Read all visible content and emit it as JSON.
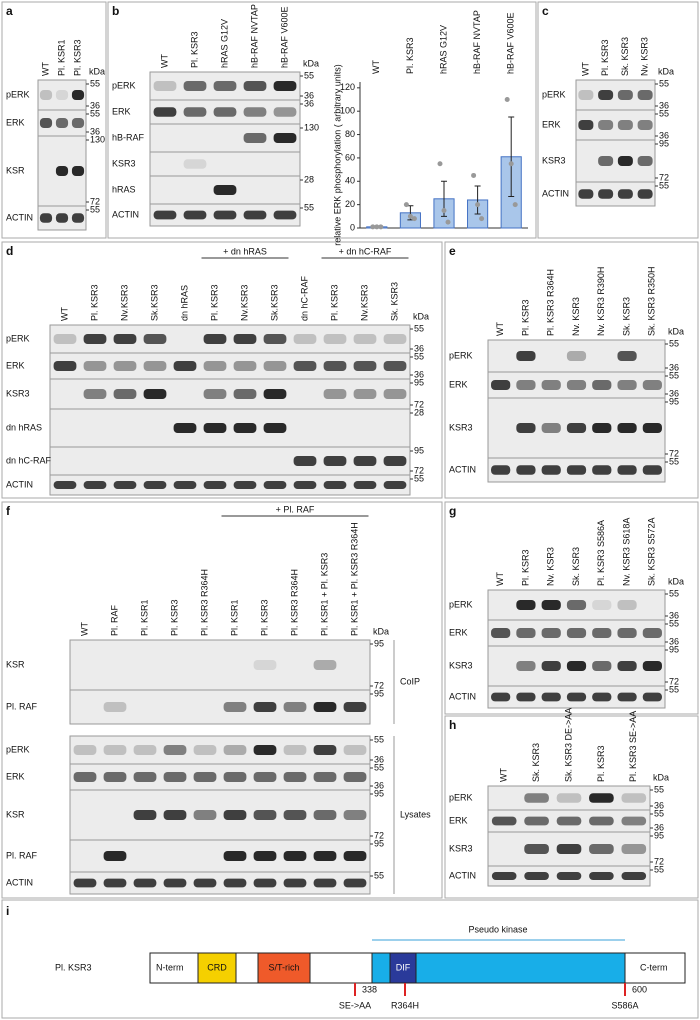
{
  "panels": [
    {
      "label": "a",
      "kda": "kDa",
      "lanes": [
        "WT",
        "Pl. KSR1",
        "Pl. KSR3"
      ],
      "sections": [
        {
          "rows": [
            {
              "name": "pERK",
              "markers": [
                55,
                36
              ]
            },
            {
              "name": "ERK",
              "markers": [
                55,
                36
              ]
            },
            {
              "name": "KSR",
              "markers": [
                130,
                72
              ]
            },
            {
              "name": "ACTIN",
              "markers": [
                55
              ]
            }
          ]
        }
      ]
    },
    {
      "label": "b",
      "kda": "kDa",
      "lanes": [
        "WT",
        "Pl. KSR3",
        "hRAS G12V",
        "hB-RAF NVTAP",
        "hB-RAF V600E"
      ],
      "sections": [
        {
          "rows": [
            {
              "name": "pERK",
              "markers": [
                55,
                36
              ]
            },
            {
              "name": "ERK",
              "markers": [
                36
              ]
            },
            {
              "name": "hB-RAF",
              "markers": [
                130
              ]
            },
            {
              "name": "KSR3",
              "markers": []
            },
            {
              "name": "hRAS",
              "markers": [
                28
              ]
            },
            {
              "name": "ACTIN",
              "markers": [
                55
              ]
            }
          ]
        }
      ]
    },
    {
      "label": "c",
      "kda": "kDa",
      "lanes": [
        "WT",
        "Pl. KSR3",
        "Sk. KSR3",
        "Nv. KSR3"
      ],
      "sections": [
        {
          "rows": [
            {
              "name": "pERK",
              "markers": [
                55,
                36
              ]
            },
            {
              "name": "ERK",
              "markers": [
                55,
                36
              ]
            },
            {
              "name": "KSR3",
              "markers": [
                95,
                72
              ]
            },
            {
              "name": "ACTIN",
              "markers": [
                55
              ]
            }
          ]
        }
      ]
    },
    {
      "label": "d",
      "kda": "kDa",
      "groups": [
        "+ dn hRAS",
        "+ dn hC-RAF"
      ],
      "lanes": [
        "WT",
        "Pl. KSR3",
        "Nv.KSR3",
        "Sk.KSR3",
        "dn hRAS",
        "Pl. KSR3",
        "Nv.KSR3",
        "Sk.KSR3",
        "dn hC-RAF",
        "Pl. KSR3",
        "Nv.KSR3",
        "Sk. KSR3"
      ],
      "sections": [
        {
          "rows": [
            {
              "name": "pERK",
              "markers": [
                55,
                36
              ]
            },
            {
              "name": "ERK",
              "markers": [
                55,
                36
              ]
            },
            {
              "name": "KSR3",
              "markers": [
                95,
                72
              ]
            },
            {
              "name": "dn hRAS",
              "markers": [
                28
              ]
            },
            {
              "name": "dn hC-RAF",
              "markers": [
                95,
                72
              ]
            },
            {
              "name": "ACTIN",
              "markers": [
                55
              ]
            }
          ]
        }
      ]
    },
    {
      "label": "e",
      "kda": "kDa",
      "lanes": [
        "WT",
        "Pl. KSR3",
        "Pl. KSR3  R364H",
        "Nv. KSR3",
        "Nv. KSR3 R390H",
        "Sk. KSR3",
        "Sk. KSR3 R350H"
      ],
      "sections": [
        {
          "rows": [
            {
              "name": "pERK",
              "markers": [
                55,
                36
              ]
            },
            {
              "name": "ERK",
              "markers": [
                55,
                36
              ]
            },
            {
              "name": "KSR3",
              "markers": [
                95,
                72
              ]
            },
            {
              "name": "ACTIN",
              "markers": [
                55
              ]
            }
          ]
        }
      ]
    },
    {
      "label": "f",
      "kda": "kDa",
      "groups": [
        "+ Pl. RAF"
      ],
      "lanes": [
        "WT",
        "Pl. RAF",
        "Pl. KSR1",
        "Pl. KSR3",
        "Pl. KSR3  R364H",
        "Pl. KSR1",
        "Pl. KSR3",
        "Pl. KSR3  R364H",
        "Pl. KSR1 + Pl. KSR3",
        "Pl. KSR1 + Pl. KSR3 R364H"
      ],
      "sections": [
        {
          "label": "CoIP",
          "rows": [
            {
              "name": "KSR",
              "markers": [
                95,
                72
              ]
            },
            {
              "name": "Pl. RAF",
              "markers": [
                95
              ]
            }
          ]
        },
        {
          "label": "Lysates",
          "rows": [
            {
              "name": "pERK",
              "markers": [
                55,
                36
              ]
            },
            {
              "name": "ERK",
              "markers": [
                55,
                36
              ]
            },
            {
              "name": "KSR",
              "markers": [
                95,
                72
              ]
            },
            {
              "name": "Pl. RAF",
              "markers": [
                95
              ]
            },
            {
              "name": "ACTIN",
              "markers": [
                55
              ]
            }
          ]
        }
      ]
    },
    {
      "label": "g",
      "kda": "kDa",
      "lanes": [
        "WT",
        "Pl. KSR3",
        "Nv. KSR3",
        "Sk. KSR3",
        "Pl. KSR3 S586A",
        "Nv. KSR3 S618A",
        "Sk. KSR3 S572A"
      ],
      "sections": [
        {
          "rows": [
            {
              "name": "pERK",
              "markers": [
                55,
                36
              ]
            },
            {
              "name": "ERK",
              "markers": [
                55,
                36
              ]
            },
            {
              "name": "KSR3",
              "markers": [
                95,
                72
              ]
            },
            {
              "name": "ACTIN",
              "markers": [
                55
              ]
            }
          ]
        }
      ]
    },
    {
      "label": "h",
      "kda": "kDa",
      "lanes": [
        "WT",
        "Sk. KSR3",
        "Sk. KSR3 DE->AA",
        "Pl. KSR3",
        "Pl. KSR3 SE->AA"
      ],
      "sections": [
        {
          "rows": [
            {
              "name": "pERK",
              "markers": [
                55,
                36
              ]
            },
            {
              "name": "ERK",
              "markers": [
                55,
                36
              ]
            },
            {
              "name": "KSR3",
              "markers": [
                95,
                72
              ]
            },
            {
              "name": "ACTIN",
              "markers": [
                55
              ]
            }
          ]
        }
      ]
    }
  ],
  "chart_data": {
    "type": "bar",
    "ylabel": "relative ERK phosphorylation ( arbitrary units)",
    "categories": [
      "WT",
      "Pl. KSR3",
      "hRAS G12V",
      "hB-RAF NVTAP",
      "hB-RAF V600E"
    ],
    "values": [
      1,
      13,
      25,
      24,
      61
    ],
    "errors": [
      0.5,
      6,
      15,
      12,
      34
    ],
    "points": [
      [
        1,
        1,
        1
      ],
      [
        20,
        10,
        8
      ],
      [
        55,
        15,
        5
      ],
      [
        45,
        20,
        8
      ],
      [
        110,
        55,
        20
      ]
    ],
    "ylim": [
      0,
      125
    ],
    "yticks": [
      0,
      20,
      40,
      60,
      80,
      100,
      120
    ],
    "color": "#a9c6ea"
  },
  "diagram": {
    "label": "i",
    "protein": "Pl. KSR3",
    "n_term": "N-term",
    "c_term": "C-term",
    "domains": [
      "CRD",
      "S/T-rich",
      "DIF"
    ],
    "region": "Pseudo kinase",
    "positions": [
      338,
      600
    ],
    "mutations": [
      "SE->AA",
      "R364H",
      "S586A"
    ]
  }
}
